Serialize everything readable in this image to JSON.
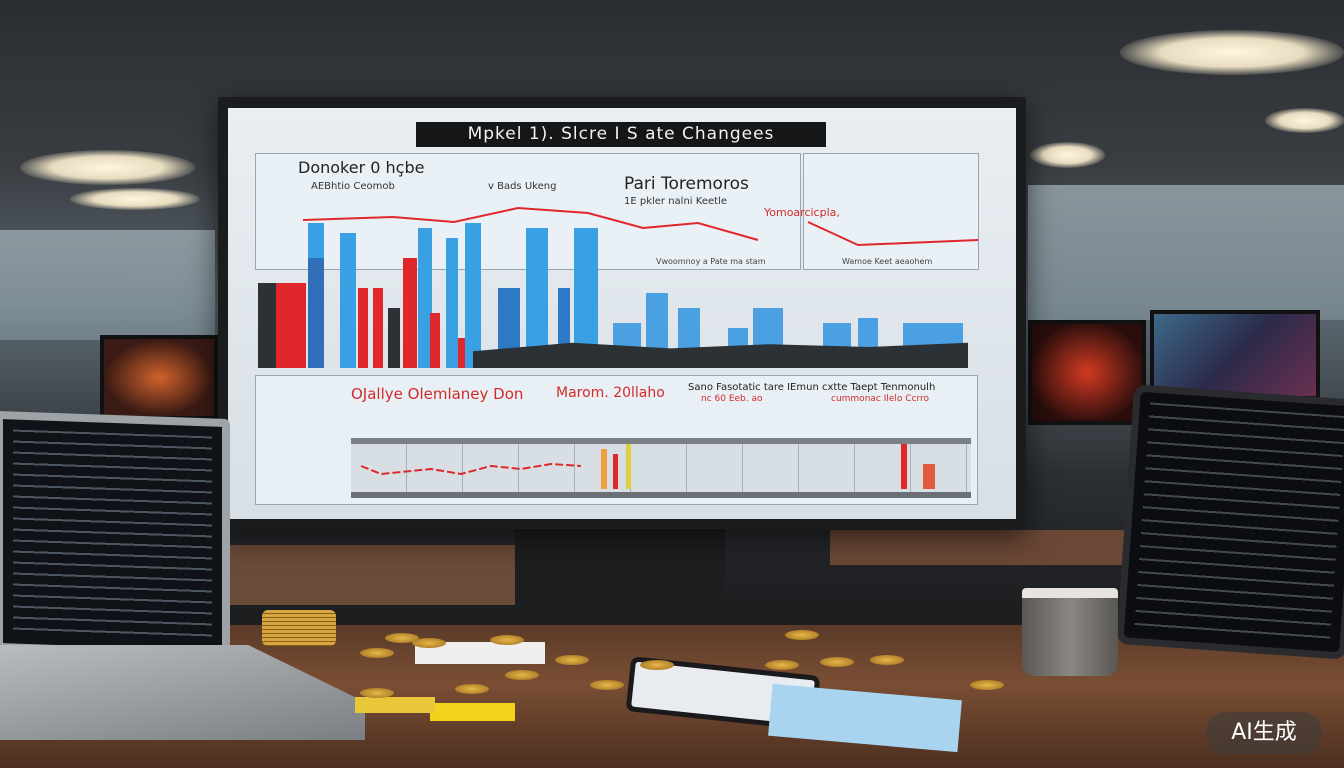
{
  "monitor": {
    "title": "Mpkel 1). Slcre I S ate Changees",
    "top_panel": {
      "heading": "Donoker 0 hçbe",
      "subheading": "AEBhtio Ceomob",
      "legend_label": "v Bads Ukeng",
      "right_heading": "Pari Toremoros",
      "right_subheading": "1E pkler nalni Keetle",
      "annotation": "Yomoarcicpla,",
      "footer_note": "Vwoomnoy a Pate ma stam",
      "side_footer_note": "Wamoe Keet aeaohem"
    },
    "bottom_panel": {
      "heading": "OJallye Olemlaney Don",
      "subheading": "Marom. 20llaho",
      "right_text": "Sano Fasotatic tare IEmun cxtte Taept Tenmonulh",
      "right_sub_red": "nc 60 Eeb. ao",
      "right_sub_red2": "cummonac Ilelo Ccrro"
    },
    "colors": {
      "accent_red": "#e0282c",
      "accent_blue": "#3aa0e4",
      "dark_bar": "#2c3136"
    }
  },
  "watermark": "AI生成"
}
